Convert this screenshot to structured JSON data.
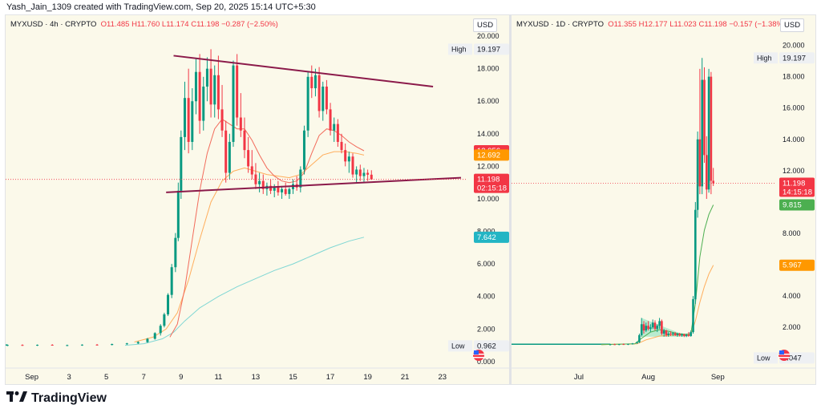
{
  "header": {
    "caption": "Yash_Jain_1309 created with TradingView.com, Sep 20, 2025 15:14 UTC+5:30"
  },
  "footer": {
    "brand": "TradingView",
    "logo_icon": "tradingview-logo-icon"
  },
  "colors": {
    "up": "#089981",
    "down": "#f23645",
    "ma_fast": "#f26b5b",
    "ma_mid": "#ffae5c",
    "ma_slow": "#7fd7d4",
    "trendline": "#8b1a4a",
    "bg": "#fbf9ea"
  },
  "chart_data": [
    {
      "type": "candlestick",
      "symbol": "MYXUSD",
      "interval": "4h",
      "exchange": "CRYPTO",
      "legend": {
        "open": "O11.485",
        "high": "H11.760",
        "low": "L11.174",
        "close": "C11.198",
        "change": "−0.287 (−2.50%)"
      },
      "currency": "USD",
      "ylim": [
        -0.4,
        20.3
      ],
      "y_ticks": [
        "20.000",
        "18.000",
        "16.000",
        "14.000",
        "12.000",
        "10.000",
        "8.000",
        "6.000",
        "4.000",
        "2.000",
        "0.000"
      ],
      "x_tick_labels": [
        "Sep",
        "3",
        "5",
        "7",
        "9",
        "11",
        "13",
        "15",
        "17",
        "19",
        "21",
        "23"
      ],
      "x_tick_days": [
        0,
        2,
        4,
        6,
        8,
        10,
        12,
        14,
        16,
        18,
        20,
        22
      ],
      "xlim_days": [
        -1.4,
        23.3
      ],
      "last_day": 19.8,
      "price_labels": [
        {
          "text": "High",
          "value": "19.197",
          "y": 19.197,
          "kind": "plain"
        },
        {
          "text": "",
          "value": "12.956",
          "y": 12.956,
          "kind": "red"
        },
        {
          "text": "",
          "value": "12.692",
          "y": 12.692,
          "kind": "orange"
        },
        {
          "text": "",
          "value": "11.198",
          "sub": "02:15:18",
          "y": 11.198,
          "kind": "red"
        },
        {
          "text": "",
          "value": "7.642",
          "y": 7.642,
          "kind": "teal"
        },
        {
          "text": "Low",
          "value": "0.962",
          "y": 0.962,
          "kind": "plain"
        }
      ],
      "last_price": 11.198,
      "trendlines": [
        {
          "x1": 7.6,
          "y1": 18.8,
          "x2": 21.5,
          "y2": 16.9
        },
        {
          "x1": 7.2,
          "y1": 10.4,
          "x2": 23.0,
          "y2": 11.3
        }
      ],
      "candles": [
        [
          -1.3,
          1.0,
          1.05,
          0.95,
          1.02
        ],
        [
          -0.5,
          1.02,
          1.06,
          0.97,
          0.99
        ],
        [
          0.3,
          0.99,
          1.05,
          0.96,
          1.03
        ],
        [
          1.1,
          1.03,
          1.07,
          0.98,
          1.0
        ],
        [
          1.9,
          1.0,
          1.04,
          0.95,
          1.01
        ],
        [
          2.7,
          1.01,
          1.06,
          0.97,
          1.04
        ],
        [
          3.5,
          1.04,
          1.08,
          0.99,
          1.02
        ],
        [
          4.3,
          1.02,
          1.1,
          1.0,
          1.08
        ],
        [
          5.1,
          1.08,
          1.15,
          1.03,
          1.12
        ],
        [
          5.7,
          1.12,
          1.25,
          1.08,
          1.2
        ],
        [
          6.2,
          1.2,
          1.45,
          1.15,
          1.4
        ],
        [
          6.6,
          1.4,
          1.8,
          1.35,
          1.75
        ],
        [
          6.9,
          1.75,
          2.3,
          1.6,
          2.2
        ],
        [
          7.1,
          2.2,
          3.0,
          2.1,
          2.9
        ],
        [
          7.3,
          2.9,
          4.2,
          2.8,
          4.1
        ],
        [
          7.5,
          4.1,
          6.0,
          3.9,
          5.8
        ],
        [
          7.7,
          5.8,
          7.9,
          5.5,
          7.6
        ],
        [
          7.85,
          7.6,
          11.0,
          7.4,
          10.5
        ],
        [
          8.0,
          10.5,
          14.2,
          10.0,
          13.8
        ],
        [
          8.2,
          13.8,
          17.2,
          13.0,
          16.2
        ],
        [
          8.4,
          16.2,
          18.0,
          12.8,
          13.5
        ],
        [
          8.6,
          13.5,
          16.8,
          13.0,
          16.0
        ],
        [
          8.8,
          16.0,
          18.6,
          15.2,
          17.8
        ],
        [
          9.0,
          17.8,
          18.9,
          14.0,
          14.8
        ],
        [
          9.2,
          14.8,
          17.5,
          14.2,
          16.9
        ],
        [
          9.4,
          16.9,
          18.7,
          16.0,
          18.0
        ],
        [
          9.6,
          18.0,
          19.197,
          15.0,
          15.8
        ],
        [
          9.8,
          15.8,
          18.2,
          15.0,
          17.6
        ],
        [
          10.0,
          17.6,
          18.8,
          14.9,
          15.5
        ],
        [
          10.2,
          15.5,
          17.0,
          13.8,
          14.2
        ],
        [
          10.4,
          14.2,
          14.8,
          11.0,
          11.6
        ],
        [
          10.6,
          11.6,
          14.0,
          11.2,
          13.5
        ],
        [
          10.8,
          13.5,
          18.5,
          13.2,
          18.2
        ],
        [
          11.0,
          18.2,
          18.9,
          14.5,
          15.0
        ],
        [
          11.2,
          15.0,
          16.5,
          13.8,
          14.2
        ],
        [
          11.4,
          14.2,
          15.0,
          12.5,
          13.0
        ],
        [
          11.6,
          13.0,
          13.8,
          11.6,
          12.0
        ],
        [
          11.8,
          12.0,
          13.0,
          11.2,
          11.5
        ],
        [
          12.0,
          11.5,
          12.2,
          10.6,
          10.9
        ],
        [
          12.2,
          10.9,
          11.6,
          10.4,
          11.1
        ],
        [
          12.4,
          11.1,
          11.5,
          10.3,
          10.6
        ],
        [
          12.6,
          10.6,
          11.0,
          10.2,
          10.8
        ],
        [
          12.8,
          10.8,
          11.2,
          10.3,
          10.5
        ],
        [
          13.0,
          10.5,
          10.9,
          10.1,
          10.7
        ],
        [
          13.2,
          10.7,
          11.1,
          10.2,
          10.4
        ],
        [
          13.4,
          10.4,
          10.8,
          10.0,
          10.6
        ],
        [
          13.6,
          10.6,
          11.0,
          10.2,
          10.3
        ],
        [
          13.8,
          10.3,
          10.7,
          10.0,
          10.6
        ],
        [
          14.0,
          10.6,
          11.2,
          10.3,
          10.9
        ],
        [
          14.2,
          10.9,
          11.4,
          10.5,
          10.7
        ],
        [
          14.4,
          10.7,
          12.0,
          10.4,
          11.8
        ],
        [
          14.6,
          11.8,
          14.5,
          11.5,
          14.2
        ],
        [
          14.8,
          14.2,
          17.8,
          13.8,
          17.5
        ],
        [
          15.0,
          17.5,
          18.2,
          16.2,
          16.8
        ],
        [
          15.2,
          16.8,
          18.0,
          16.3,
          17.6
        ],
        [
          15.4,
          17.6,
          18.1,
          15.0,
          15.4
        ],
        [
          15.6,
          15.4,
          17.2,
          14.8,
          16.9
        ],
        [
          15.8,
          16.9,
          17.3,
          15.2,
          15.5
        ],
        [
          16.0,
          15.5,
          15.9,
          13.9,
          14.2
        ],
        [
          16.2,
          14.2,
          15.0,
          13.5,
          14.6
        ],
        [
          16.4,
          14.6,
          14.9,
          13.2,
          13.5
        ],
        [
          16.6,
          13.5,
          14.0,
          12.8,
          13.0
        ],
        [
          16.8,
          13.0,
          13.4,
          12.0,
          12.3
        ],
        [
          17.0,
          12.3,
          12.9,
          11.6,
          12.6
        ],
        [
          17.2,
          12.6,
          12.8,
          11.3,
          11.5
        ],
        [
          17.4,
          11.5,
          12.0,
          11.0,
          11.8
        ],
        [
          17.6,
          11.8,
          12.1,
          11.1,
          11.4
        ],
        [
          17.8,
          11.4,
          11.9,
          11.0,
          11.6
        ],
        [
          18.0,
          11.6,
          11.8,
          11.1,
          11.485
        ],
        [
          18.2,
          11.485,
          11.76,
          11.174,
          11.198
        ]
      ],
      "ma_fast": [
        [
          7.4,
          1.5
        ],
        [
          7.8,
          2.3
        ],
        [
          8.2,
          4.5
        ],
        [
          8.6,
          7.5
        ],
        [
          9.0,
          10.5
        ],
        [
          9.4,
          12.8
        ],
        [
          9.8,
          14.3
        ],
        [
          10.2,
          14.9
        ],
        [
          10.6,
          14.6
        ],
        [
          11.0,
          14.3
        ],
        [
          11.4,
          14.3
        ],
        [
          11.8,
          13.6
        ],
        [
          12.2,
          12.7
        ],
        [
          12.6,
          11.9
        ],
        [
          13.0,
          11.4
        ],
        [
          13.4,
          11.1
        ],
        [
          13.8,
          11.0
        ],
        [
          14.2,
          11.1
        ],
        [
          14.6,
          11.6
        ],
        [
          15.0,
          12.8
        ],
        [
          15.4,
          13.9
        ],
        [
          15.8,
          14.3
        ],
        [
          16.2,
          14.2
        ],
        [
          16.6,
          13.9
        ],
        [
          17.0,
          13.5
        ],
        [
          17.4,
          13.2
        ],
        [
          17.8,
          12.956
        ]
      ],
      "ma_mid": [
        [
          5.5,
          1.2
        ],
        [
          6.5,
          1.5
        ],
        [
          7.2,
          2.0
        ],
        [
          7.8,
          3.0
        ],
        [
          8.4,
          5.0
        ],
        [
          9.0,
          7.5
        ],
        [
          9.6,
          9.8
        ],
        [
          10.2,
          11.1
        ],
        [
          10.8,
          11.7
        ],
        [
          11.4,
          11.9
        ],
        [
          12.0,
          11.7
        ],
        [
          12.6,
          11.5
        ],
        [
          13.2,
          11.4
        ],
        [
          13.8,
          11.3
        ],
        [
          14.4,
          11.5
        ],
        [
          15.0,
          12.1
        ],
        [
          15.6,
          12.7
        ],
        [
          16.2,
          12.9
        ],
        [
          16.8,
          12.9
        ],
        [
          17.4,
          12.8
        ],
        [
          17.8,
          12.692
        ]
      ],
      "ma_slow": [
        [
          5.0,
          1.0
        ],
        [
          6.0,
          1.1
        ],
        [
          7.0,
          1.4
        ],
        [
          7.6,
          1.8
        ],
        [
          8.2,
          2.5
        ],
        [
          9.0,
          3.3
        ],
        [
          10.0,
          4.0
        ],
        [
          11.0,
          4.6
        ],
        [
          12.0,
          5.1
        ],
        [
          13.0,
          5.6
        ],
        [
          14.0,
          6.0
        ],
        [
          15.0,
          6.5
        ],
        [
          16.0,
          7.0
        ],
        [
          17.0,
          7.4
        ],
        [
          17.8,
          7.642
        ]
      ],
      "flat_start": -1.4
    },
    {
      "type": "candlestick",
      "symbol": "MYXUSD",
      "interval": "1D",
      "exchange": "CRYPTO",
      "legend": {
        "open": "O11.355",
        "high": "H12.177",
        "low": "L11.023",
        "close": "C11.198",
        "change": "−0.157 (−1.38%)"
      },
      "currency": "USD",
      "ylim": [
        -0.6,
        20.9
      ],
      "y_ticks": [
        "20.000",
        "18.000",
        "16.000",
        "14.000",
        "12.000",
        "10.000",
        "8.000",
        "6.000",
        "4.000",
        "2.000"
      ],
      "x_tick_labels": [
        "Jul",
        "Aug",
        "Sep"
      ],
      "x_tick_days": [
        30,
        61,
        92
      ],
      "xlim_days": [
        0,
        118
      ],
      "price_labels": [
        {
          "text": "High",
          "value": "19.197",
          "y": 19.197,
          "kind": "plain"
        },
        {
          "text": "",
          "value": "11.198",
          "sub": "14:15:18",
          "y": 11.198,
          "kind": "red"
        },
        {
          "text": "",
          "value": "9.815",
          "y": 9.815,
          "kind": "green"
        },
        {
          "text": "",
          "value": "5.967",
          "y": 5.967,
          "kind": "orange"
        },
        {
          "text": "Low",
          "value": "0.047",
          "y": 0.047,
          "kind": "plain"
        }
      ],
      "last_price": 11.198,
      "triangle": [
        [
          58,
          2.6
        ],
        [
          58,
          1.4
        ],
        [
          79,
          1.4
        ]
      ],
      "candles": [
        [
          44,
          0.9,
          0.95,
          0.85,
          0.92
        ],
        [
          46,
          0.92,
          0.96,
          0.88,
          0.9
        ],
        [
          48,
          0.9,
          0.94,
          0.86,
          0.93
        ],
        [
          50,
          0.93,
          0.97,
          0.89,
          0.91
        ],
        [
          52,
          0.91,
          0.95,
          0.87,
          0.94
        ],
        [
          54,
          0.94,
          1.0,
          0.9,
          0.98
        ],
        [
          56,
          0.98,
          1.1,
          0.95,
          1.05
        ],
        [
          57,
          1.05,
          1.6,
          1.0,
          1.5
        ],
        [
          58,
          1.5,
          2.6,
          1.4,
          2.2
        ],
        [
          59,
          2.2,
          2.4,
          1.6,
          1.8
        ],
        [
          60,
          1.8,
          2.3,
          1.7,
          2.1
        ],
        [
          61,
          2.1,
          2.4,
          1.8,
          1.9
        ],
        [
          62,
          1.9,
          2.2,
          1.7,
          2.0
        ],
        [
          63,
          2.0,
          2.5,
          1.9,
          2.3
        ],
        [
          64,
          2.3,
          2.45,
          1.8,
          1.9
        ],
        [
          65,
          1.9,
          2.2,
          1.7,
          2.1
        ],
        [
          66,
          2.1,
          2.6,
          1.9,
          2.4
        ],
        [
          67,
          2.4,
          2.5,
          1.5,
          1.6
        ],
        [
          68,
          1.6,
          1.9,
          1.4,
          1.8
        ],
        [
          69,
          1.8,
          1.85,
          1.4,
          1.5
        ],
        [
          70,
          1.5,
          1.7,
          1.4,
          1.6
        ],
        [
          71,
          1.6,
          1.75,
          1.45,
          1.55
        ],
        [
          72,
          1.55,
          1.7,
          1.45,
          1.62
        ],
        [
          73,
          1.62,
          1.7,
          1.45,
          1.5
        ],
        [
          74,
          1.5,
          1.65,
          1.4,
          1.58
        ],
        [
          75,
          1.58,
          1.65,
          1.42,
          1.48
        ],
        [
          76,
          1.48,
          1.62,
          1.4,
          1.55
        ],
        [
          77,
          1.55,
          1.6,
          1.38,
          1.45
        ],
        [
          78,
          1.45,
          1.6,
          1.38,
          1.52
        ],
        [
          79,
          1.52,
          1.7,
          1.4,
          1.45
        ],
        [
          80,
          1.45,
          1.8,
          1.4,
          1.7
        ],
        [
          81,
          1.7,
          4.0,
          1.6,
          3.8
        ],
        [
          82,
          3.8,
          10.0,
          3.5,
          9.5
        ],
        [
          83,
          9.5,
          14.5,
          9.0,
          14.0
        ],
        [
          84,
          14.0,
          18.5,
          10.5,
          11.0
        ],
        [
          85,
          11.0,
          19.197,
          10.5,
          17.8
        ],
        [
          86,
          17.8,
          18.6,
          12.5,
          13.0
        ],
        [
          87,
          13.0,
          14.2,
          10.2,
          10.8
        ],
        [
          88,
          10.8,
          18.5,
          10.6,
          18.0
        ],
        [
          89,
          18.0,
          18.3,
          10.5,
          11.355
        ],
        [
          90,
          11.355,
          12.177,
          11.023,
          11.198
        ]
      ],
      "ma_fast": [
        [
          40,
          0.9
        ],
        [
          55,
          0.95
        ],
        [
          58,
          1.3
        ],
        [
          62,
          1.7
        ],
        [
          66,
          1.85
        ],
        [
          70,
          1.75
        ],
        [
          74,
          1.6
        ],
        [
          78,
          1.55
        ],
        [
          80,
          1.6
        ],
        [
          82,
          3.5
        ],
        [
          84,
          6.5
        ],
        [
          86,
          8.2
        ],
        [
          88,
          9.2
        ],
        [
          90,
          9.815
        ]
      ],
      "ma_mid": [
        [
          40,
          0.9
        ],
        [
          56,
          0.95
        ],
        [
          60,
          1.2
        ],
        [
          66,
          1.45
        ],
        [
          72,
          1.5
        ],
        [
          78,
          1.5
        ],
        [
          80,
          1.55
        ],
        [
          82,
          2.4
        ],
        [
          84,
          3.6
        ],
        [
          86,
          4.6
        ],
        [
          88,
          5.4
        ],
        [
          90,
          5.967
        ]
      ],
      "flat_start": 0
    }
  ]
}
